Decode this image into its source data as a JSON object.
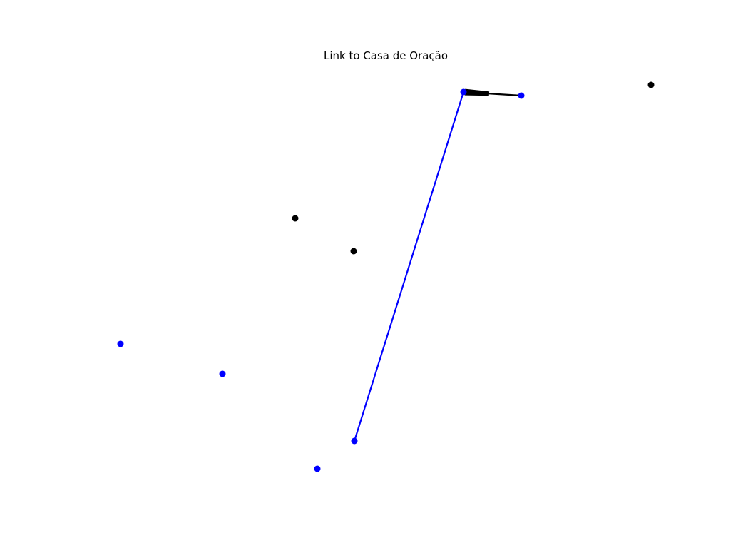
{
  "title": "Link to Casa de Oração",
  "colors": {
    "blue": "#0000ff",
    "black": "#000000",
    "background": "#ffffff"
  },
  "graph": {
    "nodes": [
      {
        "id": "hub",
        "color": "blue"
      },
      {
        "id": "n-top-right-blue",
        "color": "blue"
      },
      {
        "id": "n-far-right-black",
        "color": "black"
      },
      {
        "id": "n-mid-black-1",
        "color": "black"
      },
      {
        "id": "n-mid-black-2",
        "color": "black"
      },
      {
        "id": "n-left-blue-1",
        "color": "blue"
      },
      {
        "id": "n-left-blue-2",
        "color": "blue"
      },
      {
        "id": "n-bottom-blue-1",
        "color": "blue"
      },
      {
        "id": "n-bottom-blue-2",
        "color": "blue"
      }
    ],
    "edges": [
      {
        "from": "hub",
        "to": "n-bottom-blue-1",
        "color": "blue",
        "style": "line"
      },
      {
        "from": "hub",
        "to": "n-top-right-blue",
        "color": "black",
        "style": "arrow"
      }
    ]
  }
}
